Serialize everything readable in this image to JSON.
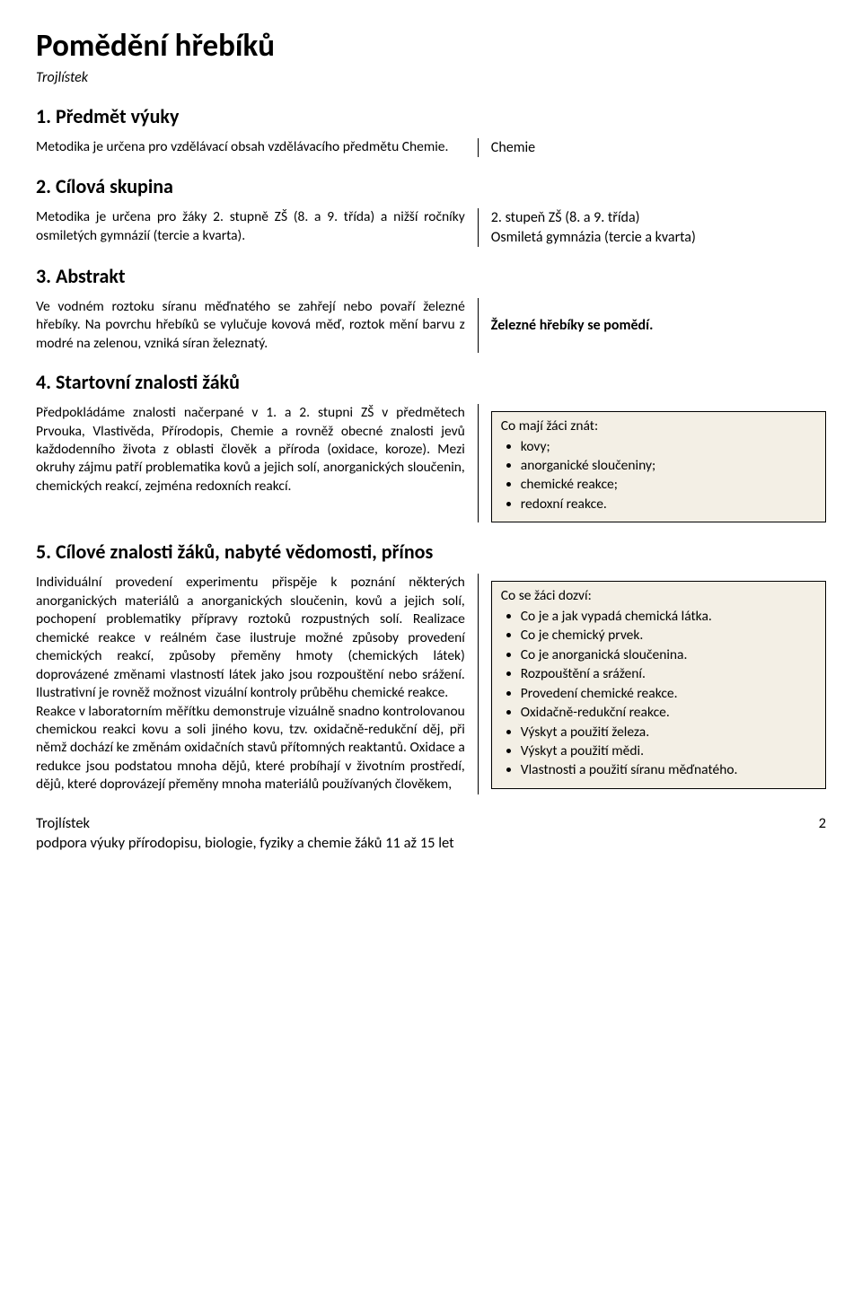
{
  "title": "Pomědění hřebíků",
  "subtitle": "Trojlístek",
  "sections": {
    "s1": {
      "heading": "1. Předmět výuky",
      "left": "Metodika je určena pro vzdělávací obsah vzdělávacího předmětu Chemie.",
      "right": "Chemie"
    },
    "s2": {
      "heading": "2. Cílová skupina",
      "left": "Metodika je určena pro žáky 2. stupně ZŠ (8. a 9. třída) a nižší ročníky osmiletých gymnázií (tercie a kvarta).",
      "right_line1": "2. stupeň ZŠ (8. a 9. třída)",
      "right_line2": "Osmiletá gymnázia (tercie a kvarta)"
    },
    "s3": {
      "heading": "3. Abstrakt",
      "left": "Ve vodném roztoku síranu měďnatého se zahřejí nebo povaří železné hřebíky. Na povrchu hřebíků se vylučuje kovová měď, roztok mění barvu z modré na zelenou, vzniká síran železnatý.",
      "right": "Železné hřebíky se pomědí."
    },
    "s4": {
      "heading": "4. Startovní znalosti žáků",
      "left": "Předpokládáme znalosti načerpané v 1. a 2. stupni ZŠ v předmětech Prvouka, Vlastivěda, Přírodopis, Chemie a rovněž obecné znalosti jevů každodenního života z oblasti člověk a příroda (oxidace, koroze). Mezi okruhy zájmu patří problematika kovů a jejich solí, anorganických sloučenin, chemických reakcí, zejména redoxních reakcí.",
      "box_title": "Co mají žáci znát:",
      "box_items": [
        "kovy;",
        "anorganické sloučeniny;",
        "chemické reakce;",
        "redoxní reakce."
      ]
    },
    "s5": {
      "heading": "5. Cílové znalosti žáků, nabyté vědomosti, přínos",
      "left": "Individuální provedení experimentu přispěje k poznání některých anorganických materiálů a anorganických sloučenin, kovů a jejich solí, pochopení problematiky přípravy roztoků rozpustných solí. Realizace chemické reakce v reálném čase ilustruje možné způsoby provedení chemických reakcí, způsoby přeměny hmoty (chemických látek) doprovázené změnami vlastností látek jako jsou rozpouštění nebo srážení. Ilustrativní je rovněž možnost vizuální kontroly průběhu chemické reakce.\nReakce v laboratorním měřítku demonstruje vizuálně snadno kontrolovanou chemickou reakci kovu a soli jiného kovu, tzv. oxidačně-redukční děj, při němž dochází ke změnám oxidačních stavů přítomných reaktantů. Oxidace a redukce jsou podstatou mnoha dějů, které probíhají v životním prostředí, dějů, které doprovázejí přeměny mnoha materiálů používaných člověkem,",
      "box_title": "Co se žáci dozví:",
      "box_items": [
        "Co je a jak vypadá chemická látka.",
        "Co je chemický prvek.",
        "Co je anorganická sloučenina.",
        "Rozpouštění a srážení.",
        "Provedení chemické reakce.",
        "Oxidačně-redukční reakce.",
        "Výskyt a použití železa.",
        "Výskyt a použití mědi.",
        "Vlastnosti a použití síranu měďnatého."
      ]
    }
  },
  "footer": {
    "left_line1": "Trojlístek",
    "left_line2": "podpora výuky přírodopisu, biologie, fyziky a chemie žáků 11 až 15 let",
    "page": "2"
  },
  "colors": {
    "text": "#000000",
    "box_bg": "#f3efe5",
    "box_border": "#000000",
    "page_bg": "#ffffff"
  }
}
